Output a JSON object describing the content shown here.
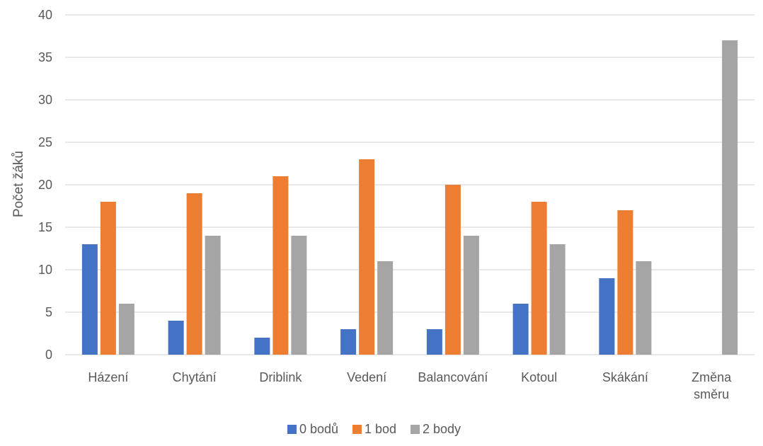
{
  "chart_data": {
    "type": "bar",
    "title": "",
    "xlabel": "",
    "ylabel": "Počet žáků",
    "ylim": [
      0,
      40
    ],
    "yticks": [
      "0",
      "5",
      "10",
      "15",
      "20",
      "25",
      "30",
      "35",
      "40"
    ],
    "grid": "horizontal",
    "legend_position": "bottom",
    "categories": [
      [
        "Házení"
      ],
      [
        "Chytání"
      ],
      [
        "Driblink"
      ],
      [
        "Vedení"
      ],
      [
        "Balancování"
      ],
      [
        "Kotoul"
      ],
      [
        "Skákání"
      ],
      [
        "Změna",
        "směru"
      ]
    ],
    "series": [
      {
        "name": "0 bodů",
        "color": "#4472c4",
        "values": [
          13,
          4,
          2,
          3,
          3,
          6,
          9,
          0
        ]
      },
      {
        "name": "1 bod",
        "color": "#ed7d31",
        "values": [
          18,
          19,
          21,
          23,
          20,
          18,
          17,
          0
        ]
      },
      {
        "name": "2 body",
        "color": "#a5a5a5",
        "values": [
          6,
          14,
          14,
          11,
          14,
          13,
          11,
          37
        ]
      }
    ]
  }
}
